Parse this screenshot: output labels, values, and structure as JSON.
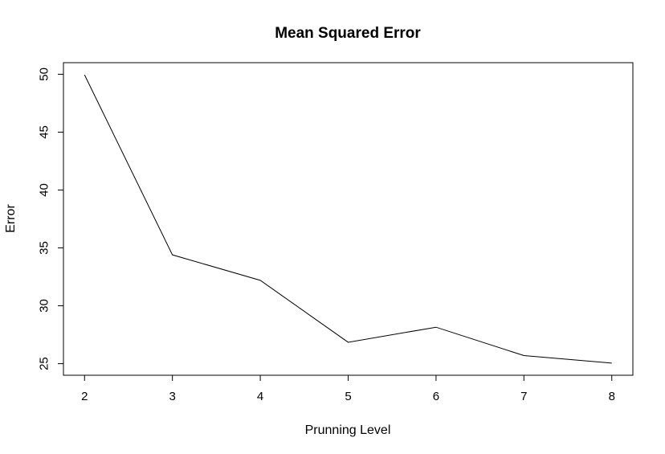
{
  "chart_data": {
    "type": "line",
    "title": "Mean Squared Error",
    "xlabel": "Prunning Level",
    "ylabel": "Error",
    "x": [
      2,
      3,
      4,
      5,
      6,
      7,
      8
    ],
    "series": [
      {
        "values": [
          49.95,
          34.4,
          32.2,
          26.85,
          28.15,
          25.7,
          25.05
        ]
      }
    ],
    "xticks": [
      2,
      3,
      4,
      5,
      6,
      7,
      8
    ],
    "yticks": [
      25,
      30,
      35,
      40,
      45,
      50
    ],
    "xlim": [
      1.76,
      8.24
    ],
    "ylim": [
      24.0,
      51.0
    ],
    "grid": false,
    "legend": "none",
    "line_color": "#000000"
  }
}
